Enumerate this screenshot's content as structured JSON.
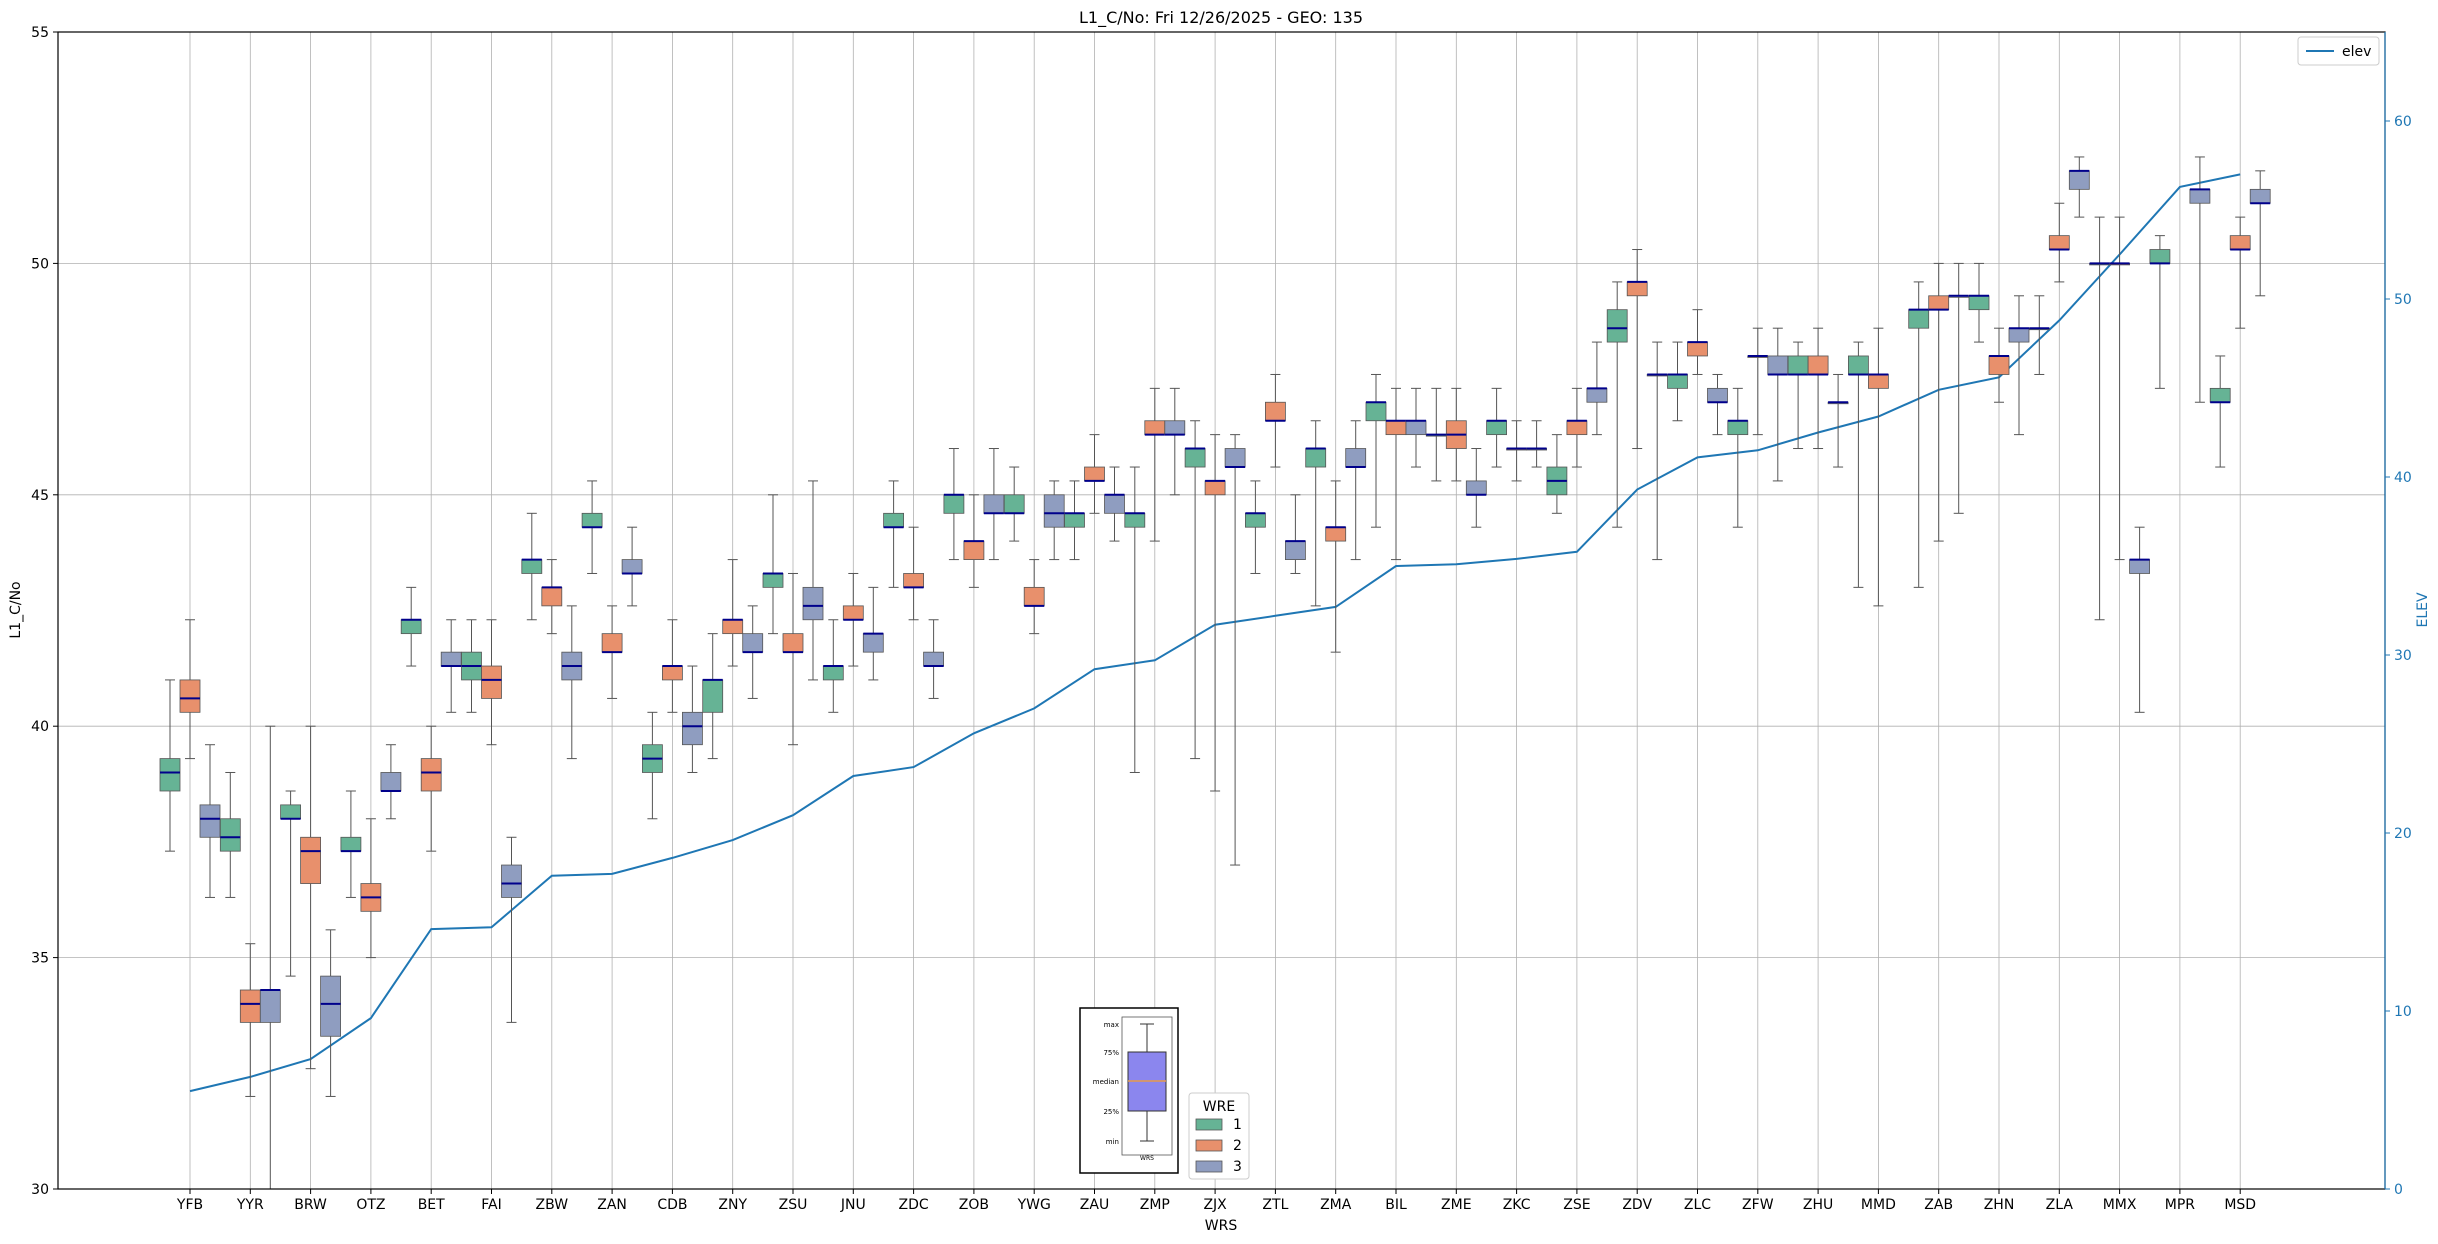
{
  "chart_data": {
    "type": "box",
    "title": "L1_C/No: Fri 12/26/2025 - GEO: 135",
    "xlabel": "WRS",
    "ylabel": "L1_C/No",
    "y2label": "ELEV",
    "ylim": [
      30,
      55
    ],
    "y2lim": [
      0,
      65
    ],
    "yticks": [
      30,
      35,
      40,
      45,
      50,
      55
    ],
    "y2ticks": [
      0,
      10,
      20,
      30,
      40,
      50,
      60
    ],
    "grid": true,
    "categories": [
      "YFB",
      "YYR",
      "BRW",
      "OTZ",
      "BET",
      "FAI",
      "ZBW",
      "ZAN",
      "CDB",
      "ZNY",
      "ZSU",
      "JNU",
      "ZDC",
      "ZOB",
      "YWG",
      "ZAU",
      "ZMP",
      "ZJX",
      "ZTL",
      "ZMA",
      "BIL",
      "ZME",
      "ZKC",
      "ZSE",
      "ZDV",
      "ZLC",
      "ZFW",
      "ZHU",
      "MMD",
      "ZAB",
      "ZHN",
      "ZLA",
      "MMX",
      "MPR",
      "MSD"
    ],
    "legend": {
      "title": "WRE",
      "placement": "bottom-center",
      "entries": [
        {
          "label": "1",
          "color": "#66b395"
        },
        {
          "label": "2",
          "color": "#e8906c"
        },
        {
          "label": "3",
          "color": "#8f9dc0"
        }
      ]
    },
    "elev_legend": {
      "label": "elev",
      "color": "#1f77b4",
      "placement": "top-right"
    },
    "boxes": [
      {
        "cat": "YFB",
        "wre": 1,
        "min": 37.3,
        "q1": 38.6,
        "median": 39.0,
        "q3": 39.3,
        "max": 41.0
      },
      {
        "cat": "YFB",
        "wre": 2,
        "min": 39.3,
        "q1": 40.3,
        "median": 40.6,
        "q3": 41.0,
        "max": 42.3
      },
      {
        "cat": "YFB",
        "wre": 3,
        "min": 36.3,
        "q1": 37.6,
        "median": 38.0,
        "q3": 38.3,
        "max": 39.6
      },
      {
        "cat": "YYR",
        "wre": 1,
        "min": 36.3,
        "q1": 37.3,
        "median": 37.6,
        "q3": 38.0,
        "max": 39.0
      },
      {
        "cat": "YYR",
        "wre": 2,
        "min": 32.0,
        "q1": 33.6,
        "median": 34.0,
        "q3": 34.3,
        "max": 35.3
      },
      {
        "cat": "YYR",
        "wre": 3,
        "min": 30.0,
        "q1": 33.6,
        "median": 34.3,
        "q3": 34.3,
        "max": 40.0
      },
      {
        "cat": "BRW",
        "wre": 1,
        "min": 34.6,
        "q1": 38.0,
        "median": 38.0,
        "q3": 38.3,
        "max": 38.6
      },
      {
        "cat": "BRW",
        "wre": 2,
        "min": 32.6,
        "q1": 36.6,
        "median": 37.3,
        "q3": 37.6,
        "max": 40.0
      },
      {
        "cat": "BRW",
        "wre": 3,
        "min": 32.0,
        "q1": 33.3,
        "median": 34.0,
        "q3": 34.6,
        "max": 35.6
      },
      {
        "cat": "OTZ",
        "wre": 1,
        "min": 36.3,
        "q1": 37.3,
        "median": 37.3,
        "q3": 37.6,
        "max": 38.6
      },
      {
        "cat": "OTZ",
        "wre": 2,
        "min": 35.0,
        "q1": 36.0,
        "median": 36.3,
        "q3": 36.6,
        "max": 38.0
      },
      {
        "cat": "OTZ",
        "wre": 3,
        "min": 38.0,
        "q1": 38.6,
        "median": 38.6,
        "q3": 39.0,
        "max": 39.6
      },
      {
        "cat": "BET",
        "wre": 1,
        "min": 41.3,
        "q1": 42.0,
        "median": 42.3,
        "q3": 42.3,
        "max": 43.0
      },
      {
        "cat": "BET",
        "wre": 2,
        "min": 37.3,
        "q1": 38.6,
        "median": 39.0,
        "q3": 39.3,
        "max": 40.0
      },
      {
        "cat": "BET",
        "wre": 3,
        "min": 40.3,
        "q1": 41.3,
        "median": 41.3,
        "q3": 41.6,
        "max": 42.3
      },
      {
        "cat": "FAI",
        "wre": 1,
        "min": 40.3,
        "q1": 41.0,
        "median": 41.3,
        "q3": 41.6,
        "max": 42.3
      },
      {
        "cat": "FAI",
        "wre": 2,
        "min": 39.6,
        "q1": 40.6,
        "median": 41.0,
        "q3": 41.3,
        "max": 42.3
      },
      {
        "cat": "FAI",
        "wre": 3,
        "min": 33.6,
        "q1": 36.3,
        "median": 36.6,
        "q3": 37.0,
        "max": 37.6
      },
      {
        "cat": "ZBW",
        "wre": 1,
        "min": 42.3,
        "q1": 43.3,
        "median": 43.6,
        "q3": 43.6,
        "max": 44.6
      },
      {
        "cat": "ZBW",
        "wre": 2,
        "min": 42.0,
        "q1": 42.6,
        "median": 43.0,
        "q3": 43.0,
        "max": 43.6
      },
      {
        "cat": "ZBW",
        "wre": 3,
        "min": 39.3,
        "q1": 41.0,
        "median": 41.3,
        "q3": 41.6,
        "max": 42.6
      },
      {
        "cat": "ZAN",
        "wre": 1,
        "min": 43.3,
        "q1": 44.3,
        "median": 44.3,
        "q3": 44.6,
        "max": 45.3
      },
      {
        "cat": "ZAN",
        "wre": 2,
        "min": 40.6,
        "q1": 41.6,
        "median": 41.6,
        "q3": 42.0,
        "max": 42.6
      },
      {
        "cat": "ZAN",
        "wre": 3,
        "min": 42.6,
        "q1": 43.3,
        "median": 43.3,
        "q3": 43.6,
        "max": 44.3
      },
      {
        "cat": "CDB",
        "wre": 1,
        "min": 38.0,
        "q1": 39.0,
        "median": 39.3,
        "q3": 39.6,
        "max": 40.3
      },
      {
        "cat": "CDB",
        "wre": 2,
        "min": 40.3,
        "q1": 41.0,
        "median": 41.3,
        "q3": 41.3,
        "max": 42.3
      },
      {
        "cat": "CDB",
        "wre": 3,
        "min": 39.0,
        "q1": 39.6,
        "median": 40.0,
        "q3": 40.3,
        "max": 41.3
      },
      {
        "cat": "ZNY",
        "wre": 1,
        "min": 39.3,
        "q1": 40.3,
        "median": 41.0,
        "q3": 41.0,
        "max": 42.0
      },
      {
        "cat": "ZNY",
        "wre": 2,
        "min": 41.3,
        "q1": 42.0,
        "median": 42.3,
        "q3": 42.3,
        "max": 43.6
      },
      {
        "cat": "ZNY",
        "wre": 3,
        "min": 40.6,
        "q1": 41.6,
        "median": 41.6,
        "q3": 42.0,
        "max": 42.6
      },
      {
        "cat": "ZSU",
        "wre": 1,
        "min": 42.0,
        "q1": 43.0,
        "median": 43.3,
        "q3": 43.3,
        "max": 45.0
      },
      {
        "cat": "ZSU",
        "wre": 2,
        "min": 39.6,
        "q1": 41.6,
        "median": 41.6,
        "q3": 42.0,
        "max": 43.3
      },
      {
        "cat": "ZSU",
        "wre": 3,
        "min": 41.0,
        "q1": 42.3,
        "median": 42.6,
        "q3": 43.0,
        "max": 45.3
      },
      {
        "cat": "JNU",
        "wre": 1,
        "min": 40.3,
        "q1": 41.0,
        "median": 41.3,
        "q3": 41.3,
        "max": 42.3
      },
      {
        "cat": "JNU",
        "wre": 2,
        "min": 41.3,
        "q1": 42.3,
        "median": 42.3,
        "q3": 42.6,
        "max": 43.3
      },
      {
        "cat": "JNU",
        "wre": 3,
        "min": 41.0,
        "q1": 41.6,
        "median": 42.0,
        "q3": 42.0,
        "max": 43.0
      },
      {
        "cat": "ZDC",
        "wre": 1,
        "min": 43.0,
        "q1": 44.3,
        "median": 44.3,
        "q3": 44.6,
        "max": 45.3
      },
      {
        "cat": "ZDC",
        "wre": 2,
        "min": 42.3,
        "q1": 43.0,
        "median": 43.0,
        "q3": 43.3,
        "max": 44.3
      },
      {
        "cat": "ZDC",
        "wre": 3,
        "min": 40.6,
        "q1": 41.3,
        "median": 41.3,
        "q3": 41.6,
        "max": 42.3
      },
      {
        "cat": "ZOB",
        "wre": 1,
        "min": 43.6,
        "q1": 44.6,
        "median": 45.0,
        "q3": 45.0,
        "max": 46.0
      },
      {
        "cat": "ZOB",
        "wre": 2,
        "min": 43.0,
        "q1": 43.6,
        "median": 44.0,
        "q3": 44.0,
        "max": 45.0
      },
      {
        "cat": "ZOB",
        "wre": 3,
        "min": 43.6,
        "q1": 44.6,
        "median": 44.6,
        "q3": 45.0,
        "max": 46.0
      },
      {
        "cat": "YWG",
        "wre": 1,
        "min": 44.0,
        "q1": 44.6,
        "median": 44.6,
        "q3": 45.0,
        "max": 45.6
      },
      {
        "cat": "YWG",
        "wre": 2,
        "min": 42.0,
        "q1": 42.6,
        "median": 42.6,
        "q3": 43.0,
        "max": 43.6
      },
      {
        "cat": "YWG",
        "wre": 3,
        "min": 43.6,
        "q1": 44.3,
        "median": 44.6,
        "q3": 45.0,
        "max": 45.3
      },
      {
        "cat": "ZAU",
        "wre": 1,
        "min": 43.6,
        "q1": 44.3,
        "median": 44.6,
        "q3": 44.6,
        "max": 45.3
      },
      {
        "cat": "ZAU",
        "wre": 2,
        "min": 44.6,
        "q1": 45.3,
        "median": 45.3,
        "q3": 45.6,
        "max": 46.3
      },
      {
        "cat": "ZAU",
        "wre": 3,
        "min": 44.0,
        "q1": 44.6,
        "median": 45.0,
        "q3": 45.0,
        "max": 45.6
      },
      {
        "cat": "ZMP",
        "wre": 1,
        "min": 39.0,
        "q1": 44.3,
        "median": 44.6,
        "q3": 44.6,
        "max": 45.6
      },
      {
        "cat": "ZMP",
        "wre": 2,
        "min": 44.0,
        "q1": 46.3,
        "median": 46.3,
        "q3": 46.6,
        "max": 47.3
      },
      {
        "cat": "ZMP",
        "wre": 3,
        "min": 45.0,
        "q1": 46.3,
        "median": 46.3,
        "q3": 46.6,
        "max": 47.3
      },
      {
        "cat": "ZJX",
        "wre": 1,
        "min": 39.3,
        "q1": 45.6,
        "median": 46.0,
        "q3": 46.0,
        "max": 46.6
      },
      {
        "cat": "ZJX",
        "wre": 2,
        "min": 38.6,
        "q1": 45.0,
        "median": 45.3,
        "q3": 45.3,
        "max": 46.3
      },
      {
        "cat": "ZJX",
        "wre": 3,
        "min": 37.0,
        "q1": 45.6,
        "median": 45.6,
        "q3": 46.0,
        "max": 46.3
      },
      {
        "cat": "ZTL",
        "wre": 1,
        "min": 43.3,
        "q1": 44.3,
        "median": 44.6,
        "q3": 44.6,
        "max": 45.3
      },
      {
        "cat": "ZTL",
        "wre": 2,
        "min": 45.6,
        "q1": 46.6,
        "median": 46.6,
        "q3": 47.0,
        "max": 47.6
      },
      {
        "cat": "ZTL",
        "wre": 3,
        "min": 43.3,
        "q1": 43.6,
        "median": 44.0,
        "q3": 44.0,
        "max": 45.0
      },
      {
        "cat": "ZMA",
        "wre": 1,
        "min": 42.6,
        "q1": 45.6,
        "median": 46.0,
        "q3": 46.0,
        "max": 46.6
      },
      {
        "cat": "ZMA",
        "wre": 2,
        "min": 41.6,
        "q1": 44.0,
        "median": 44.3,
        "q3": 44.3,
        "max": 45.3
      },
      {
        "cat": "ZMA",
        "wre": 3,
        "min": 43.6,
        "q1": 45.6,
        "median": 45.6,
        "q3": 46.0,
        "max": 46.6
      },
      {
        "cat": "BIL",
        "wre": 1,
        "min": 44.3,
        "q1": 46.6,
        "median": 47.0,
        "q3": 47.0,
        "max": 47.6
      },
      {
        "cat": "BIL",
        "wre": 2,
        "min": 43.6,
        "q1": 46.3,
        "median": 46.6,
        "q3": 46.6,
        "max": 47.3
      },
      {
        "cat": "BIL",
        "wre": 3,
        "min": 45.6,
        "q1": 46.3,
        "median": 46.6,
        "q3": 46.6,
        "max": 47.3
      },
      {
        "cat": "ZME",
        "wre": 1,
        "min": 45.3,
        "q1": 46.3,
        "median": 46.3,
        "q3": 46.3,
        "max": 47.3
      },
      {
        "cat": "ZME",
        "wre": 2,
        "min": 45.3,
        "q1": 46.0,
        "median": 46.3,
        "q3": 46.6,
        "max": 47.3
      },
      {
        "cat": "ZME",
        "wre": 3,
        "min": 44.3,
        "q1": 45.0,
        "median": 45.0,
        "q3": 45.3,
        "max": 46.0
      },
      {
        "cat": "ZKC",
        "wre": 1,
        "min": 45.6,
        "q1": 46.3,
        "median": 46.6,
        "q3": 46.6,
        "max": 47.3
      },
      {
        "cat": "ZKC",
        "wre": 2,
        "min": 45.3,
        "q1": 46.0,
        "median": 46.0,
        "q3": 46.0,
        "max": 46.6
      },
      {
        "cat": "ZKC",
        "wre": 3,
        "min": 45.6,
        "q1": 46.0,
        "median": 46.0,
        "q3": 46.0,
        "max": 46.6
      },
      {
        "cat": "ZSE",
        "wre": 1,
        "min": 44.6,
        "q1": 45.0,
        "median": 45.3,
        "q3": 45.6,
        "max": 46.3
      },
      {
        "cat": "ZSE",
        "wre": 2,
        "min": 45.6,
        "q1": 46.3,
        "median": 46.6,
        "q3": 46.6,
        "max": 47.3
      },
      {
        "cat": "ZSE",
        "wre": 3,
        "min": 46.3,
        "q1": 47.0,
        "median": 47.3,
        "q3": 47.3,
        "max": 48.3
      },
      {
        "cat": "ZDV",
        "wre": 1,
        "min": 44.3,
        "q1": 48.3,
        "median": 48.6,
        "q3": 49.0,
        "max": 49.6
      },
      {
        "cat": "ZDV",
        "wre": 2,
        "min": 46.0,
        "q1": 49.3,
        "median": 49.6,
        "q3": 49.6,
        "max": 50.3
      },
      {
        "cat": "ZDV",
        "wre": 3,
        "min": 43.6,
        "q1": 47.6,
        "median": 47.6,
        "q3": 47.6,
        "max": 48.3
      },
      {
        "cat": "ZLC",
        "wre": 1,
        "min": 46.6,
        "q1": 47.3,
        "median": 47.6,
        "q3": 47.6,
        "max": 48.3
      },
      {
        "cat": "ZLC",
        "wre": 2,
        "min": 47.6,
        "q1": 48.0,
        "median": 48.3,
        "q3": 48.3,
        "max": 49.0
      },
      {
        "cat": "ZLC",
        "wre": 3,
        "min": 46.3,
        "q1": 47.0,
        "median": 47.0,
        "q3": 47.3,
        "max": 47.6
      },
      {
        "cat": "ZFW",
        "wre": 1,
        "min": 44.3,
        "q1": 46.3,
        "median": 46.6,
        "q3": 46.6,
        "max": 47.3
      },
      {
        "cat": "ZFW",
        "wre": 2,
        "min": 46.3,
        "q1": 48.0,
        "median": 48.0,
        "q3": 48.0,
        "max": 48.6
      },
      {
        "cat": "ZFW",
        "wre": 3,
        "min": 45.3,
        "q1": 47.6,
        "median": 47.6,
        "q3": 48.0,
        "max": 48.6
      },
      {
        "cat": "ZHU",
        "wre": 1,
        "min": 46.0,
        "q1": 47.6,
        "median": 47.6,
        "q3": 48.0,
        "max": 48.3
      },
      {
        "cat": "ZHU",
        "wre": 2,
        "min": 46.0,
        "q1": 47.6,
        "median": 47.6,
        "q3": 48.0,
        "max": 48.6
      },
      {
        "cat": "ZHU",
        "wre": 3,
        "min": 45.6,
        "q1": 47.0,
        "median": 47.0,
        "q3": 47.0,
        "max": 47.6
      },
      {
        "cat": "MMD",
        "wre": 1,
        "min": 43.0,
        "q1": 47.6,
        "median": 47.6,
        "q3": 48.0,
        "max": 48.3
      },
      {
        "cat": "MMD",
        "wre": 2,
        "min": 42.6,
        "q1": 47.3,
        "median": 47.6,
        "q3": 47.6,
        "max": 48.6
      },
      {
        "cat": "ZAB",
        "wre": 1,
        "min": 43.0,
        "q1": 48.6,
        "median": 49.0,
        "q3": 49.0,
        "max": 49.6
      },
      {
        "cat": "ZAB",
        "wre": 2,
        "min": 44.0,
        "q1": 49.0,
        "median": 49.0,
        "q3": 49.3,
        "max": 50.0
      },
      {
        "cat": "ZAB",
        "wre": 3,
        "min": 44.6,
        "q1": 49.3,
        "median": 49.3,
        "q3": 49.3,
        "max": 50.0
      },
      {
        "cat": "ZHN",
        "wre": 1,
        "min": 48.3,
        "q1": 49.0,
        "median": 49.3,
        "q3": 49.3,
        "max": 50.0
      },
      {
        "cat": "ZHN",
        "wre": 2,
        "min": 47.0,
        "q1": 47.6,
        "median": 48.0,
        "q3": 48.0,
        "max": 48.6
      },
      {
        "cat": "ZHN",
        "wre": 3,
        "min": 46.3,
        "q1": 48.3,
        "median": 48.6,
        "q3": 48.6,
        "max": 49.3
      },
      {
        "cat": "ZLA",
        "wre": 1,
        "min": 47.6,
        "q1": 48.6,
        "median": 48.6,
        "q3": 48.6,
        "max": 49.3
      },
      {
        "cat": "ZLA",
        "wre": 2,
        "min": 49.6,
        "q1": 50.3,
        "median": 50.3,
        "q3": 50.6,
        "max": 51.3
      },
      {
        "cat": "ZLA",
        "wre": 3,
        "min": 51.0,
        "q1": 51.6,
        "median": 52.0,
        "q3": 52.0,
        "max": 52.3
      },
      {
        "cat": "MMX",
        "wre": 1,
        "min": 42.3,
        "q1": 50.0,
        "median": 50.0,
        "q3": 50.0,
        "max": 51.0
      },
      {
        "cat": "MMX",
        "wre": 2,
        "min": 43.6,
        "q1": 50.0,
        "median": 50.0,
        "q3": 50.0,
        "max": 51.0
      },
      {
        "cat": "MMX",
        "wre": 3,
        "min": 40.3,
        "q1": 43.3,
        "median": 43.6,
        "q3": 43.6,
        "max": 44.3
      },
      {
        "cat": "MPR",
        "wre": 1,
        "min": 47.3,
        "q1": 50.0,
        "median": 50.0,
        "q3": 50.3,
        "max": 50.6
      },
      {
        "cat": "MPR",
        "wre": 3,
        "min": 47.0,
        "q1": 51.3,
        "median": 51.6,
        "q3": 51.6,
        "max": 52.3
      },
      {
        "cat": "MSD",
        "wre": 1,
        "min": 45.6,
        "q1": 47.0,
        "median": 47.0,
        "q3": 47.3,
        "max": 48.0
      },
      {
        "cat": "MSD",
        "wre": 2,
        "min": 48.6,
        "q1": 50.3,
        "median": 50.3,
        "q3": 50.6,
        "max": 51.0
      },
      {
        "cat": "MSD",
        "wre": 3,
        "min": 49.3,
        "q1": 51.3,
        "median": 51.3,
        "q3": 51.6,
        "max": 52.0
      }
    ],
    "elev": [
      5.5,
      6.3,
      7.3,
      9.6,
      14.6,
      14.7,
      17.6,
      17.7,
      18.6,
      19.6,
      21.0,
      23.2,
      23.7,
      25.6,
      27.0,
      29.2,
      29.7,
      31.7,
      32.2,
      32.7,
      35.0,
      35.1,
      35.4,
      35.8,
      39.3,
      41.1,
      41.5,
      42.5,
      43.4,
      44.9,
      45.6,
      48.8,
      52.5,
      56.3,
      57.0
    ],
    "inset": {
      "labels": [
        "max",
        "75%",
        "median",
        "25%",
        "min"
      ],
      "xlabel": "WRS"
    }
  }
}
